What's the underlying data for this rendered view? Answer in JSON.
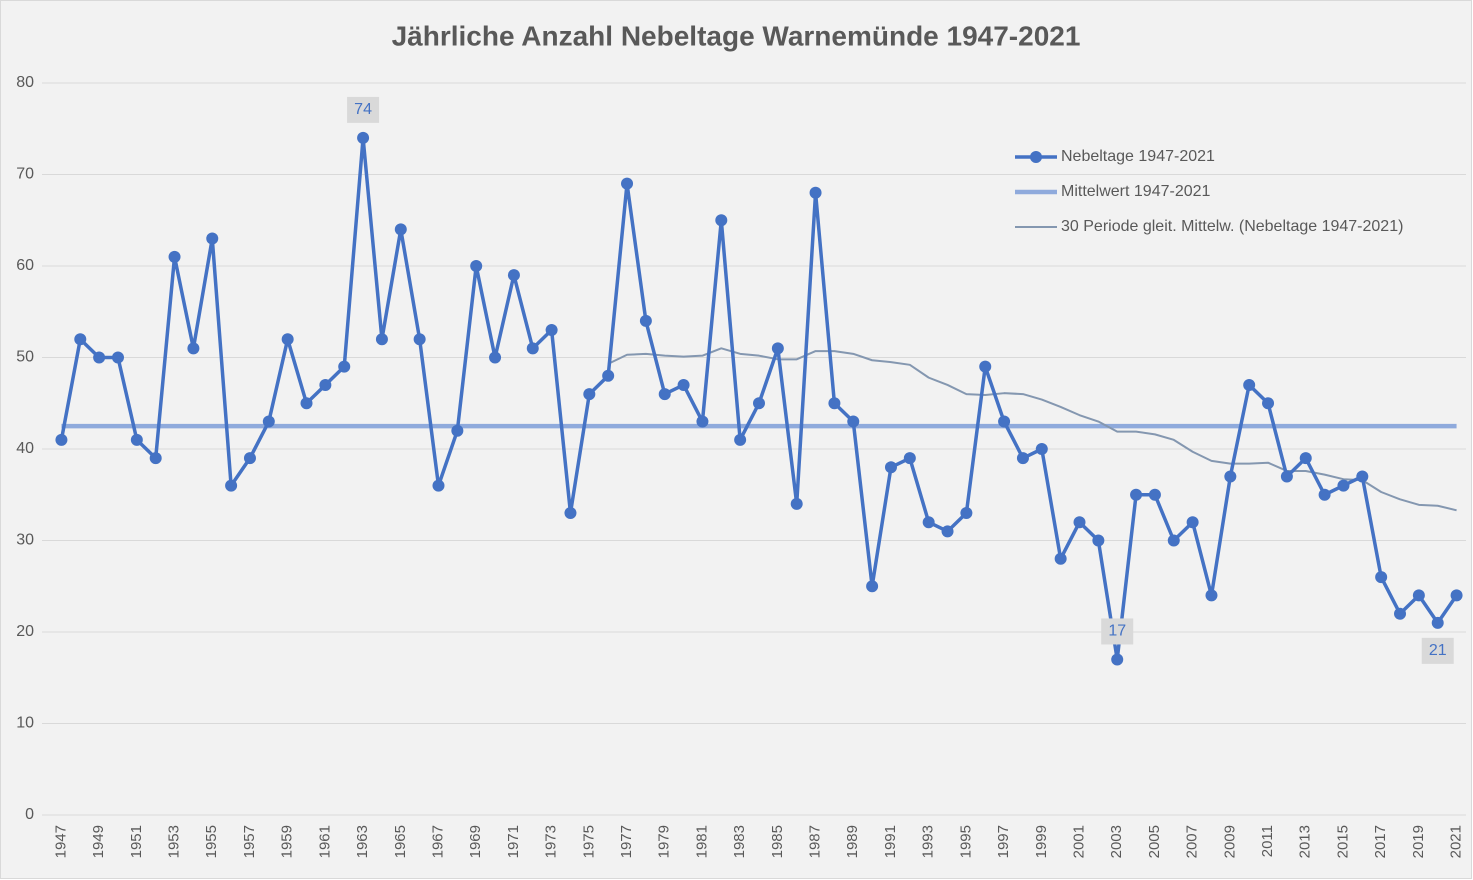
{
  "chart_data": {
    "type": "line",
    "title": "Jährliche Anzahl Nebeltage Warnemünde 1947-2021",
    "categories": [
      "1947",
      null,
      "1949",
      null,
      "1951",
      null,
      "1953",
      null,
      "1955",
      null,
      "1957",
      null,
      "1959",
      null,
      "1961",
      null,
      "1963",
      null,
      "1965",
      null,
      "1967",
      null,
      "1969",
      null,
      "1971",
      null,
      "1973",
      null,
      "1975",
      null,
      "1977",
      null,
      "1979",
      null,
      "1981",
      null,
      "1983",
      null,
      "1985",
      null,
      "1987",
      null,
      "1989",
      null,
      "1991",
      null,
      "1993",
      null,
      "1995",
      null,
      "1997",
      null,
      "1999",
      null,
      "2001",
      null,
      "2003",
      null,
      "2005",
      null,
      "2007",
      null,
      "2009",
      null,
      "2011",
      null,
      "2013",
      null,
      "2015",
      null,
      "2017",
      null,
      "2019",
      null,
      "2021"
    ],
    "series": [
      {
        "name": "Nebeltage 1947-2021",
        "color": "#4472c4",
        "markers": true,
        "values": [
          41,
          52,
          50,
          50,
          41,
          39,
          61,
          51,
          63,
          36,
          39,
          43,
          52,
          45,
          47,
          49,
          74,
          52,
          64,
          52,
          36,
          42,
          60,
          50,
          59,
          51,
          53,
          33,
          46,
          48,
          69,
          54,
          46,
          47,
          43,
          65,
          41,
          45,
          51,
          34,
          68,
          45,
          43,
          25,
          38,
          39,
          32,
          31,
          33,
          49,
          43,
          39,
          40,
          28,
          32,
          30,
          17,
          35,
          35,
          30,
          32,
          24,
          37,
          47,
          45,
          37,
          39,
          35,
          36,
          37,
          26,
          22,
          24,
          21,
          24
        ],
        "value_labels": [
          null,
          null,
          null,
          null,
          null,
          null,
          null,
          null,
          null,
          null,
          null,
          null,
          null,
          null,
          null,
          null,
          "74",
          null,
          null,
          null,
          null,
          null,
          null,
          null,
          null,
          null,
          null,
          null,
          null,
          null,
          null,
          null,
          null,
          null,
          null,
          null,
          null,
          null,
          null,
          null,
          null,
          null,
          null,
          null,
          null,
          null,
          null,
          null,
          null,
          null,
          null,
          null,
          null,
          null,
          null,
          null,
          "17",
          null,
          null,
          null,
          null,
          null,
          null,
          null,
          null,
          null,
          null,
          null,
          null,
          null,
          null,
          null,
          null,
          "21",
          null
        ]
      },
      {
        "name": "Mittelwert 1947-2021",
        "color": "#8faadc",
        "markers": false,
        "values": [
          42.5,
          42.5,
          42.5,
          42.5,
          42.5,
          42.5,
          42.5,
          42.5,
          42.5,
          42.5,
          42.5,
          42.5,
          42.5,
          42.5,
          42.5,
          42.5,
          42.5,
          42.5,
          42.5,
          42.5,
          42.5,
          42.5,
          42.5,
          42.5,
          42.5,
          42.5,
          42.5,
          42.5,
          42.5,
          42.5,
          42.5,
          42.5,
          42.5,
          42.5,
          42.5,
          42.5,
          42.5,
          42.5,
          42.5,
          42.5,
          42.5,
          42.5,
          42.5,
          42.5,
          42.5,
          42.5,
          42.5,
          42.5,
          42.5,
          42.5,
          42.5,
          42.5,
          42.5,
          42.5,
          42.5,
          42.5,
          42.5,
          42.5,
          42.5,
          42.5,
          42.5,
          42.5,
          42.5,
          42.5,
          42.5,
          42.5,
          42.5,
          42.5,
          42.5,
          42.5,
          42.5,
          42.5,
          42.5,
          42.5,
          42.5
        ]
      },
      {
        "name": "30 Periode gleit. Mittelw. (Nebeltage 1947-2021)",
        "color": "#8497b0",
        "markers": false,
        "values": [
          null,
          null,
          null,
          null,
          null,
          null,
          null,
          null,
          null,
          null,
          null,
          null,
          null,
          null,
          null,
          null,
          null,
          null,
          null,
          null,
          null,
          null,
          null,
          null,
          null,
          null,
          null,
          null,
          null,
          49.3,
          50.3,
          50.4,
          50.2,
          50.1,
          50.2,
          51.0,
          50.4,
          50.2,
          49.8,
          49.8,
          50.7,
          50.7,
          50.4,
          49.7,
          49.5,
          49.2,
          47.8,
          47.0,
          46.0,
          45.9,
          46.1,
          46.0,
          45.4,
          44.6,
          43.7,
          43.0,
          41.9,
          41.9,
          41.6,
          41.0,
          39.7,
          38.7,
          38.4,
          38.4,
          38.5,
          37.6,
          37.6,
          37.2,
          36.7,
          36.6,
          35.3,
          34.5,
          33.9,
          33.8,
          33.3
        ]
      }
    ],
    "ylim": [
      0,
      80
    ],
    "yticks": [
      0,
      10,
      20,
      30,
      40,
      50,
      60,
      70,
      80
    ],
    "grid": true,
    "legend": "top-right"
  }
}
